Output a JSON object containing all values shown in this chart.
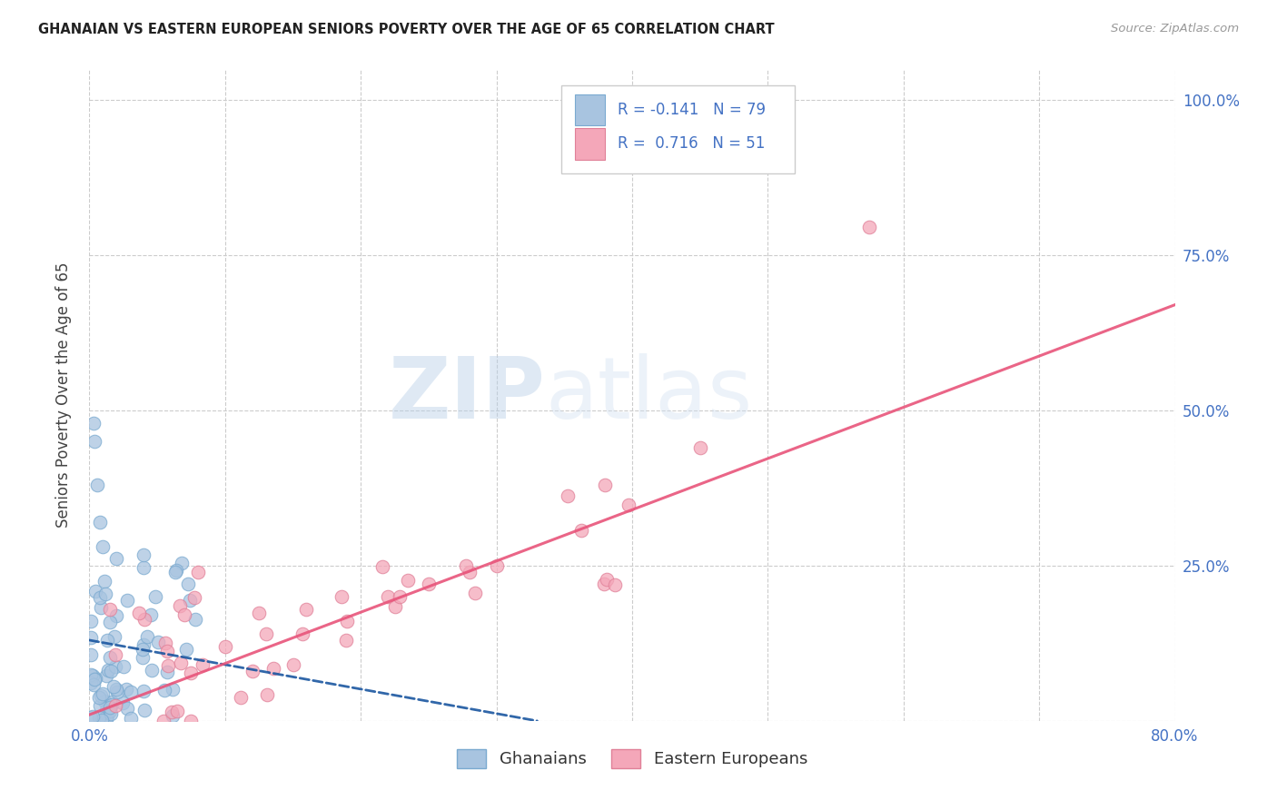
{
  "title": "GHANAIAN VS EASTERN EUROPEAN SENIORS POVERTY OVER THE AGE OF 65 CORRELATION CHART",
  "source": "Source: ZipAtlas.com",
  "ylabel": "Seniors Poverty Over the Age of 65",
  "xlim": [
    0.0,
    0.8
  ],
  "ylim": [
    0.0,
    1.05
  ],
  "ghanaian_R": -0.141,
  "ghanaian_N": 79,
  "eastern_european_R": 0.716,
  "eastern_european_N": 51,
  "legend_label_1": "Ghanaians",
  "legend_label_2": "Eastern Europeans",
  "watermark_zip": "ZIP",
  "watermark_atlas": "atlas",
  "ghanaian_color": "#a8c4e0",
  "eastern_european_color": "#f4a7b9",
  "ghanaian_line_color": "#1a56a0",
  "eastern_european_line_color": "#e8547a",
  "background_color": "#ffffff",
  "grid_color": "#cccccc",
  "tick_color": "#4472c4",
  "label_color": "#4472c4"
}
